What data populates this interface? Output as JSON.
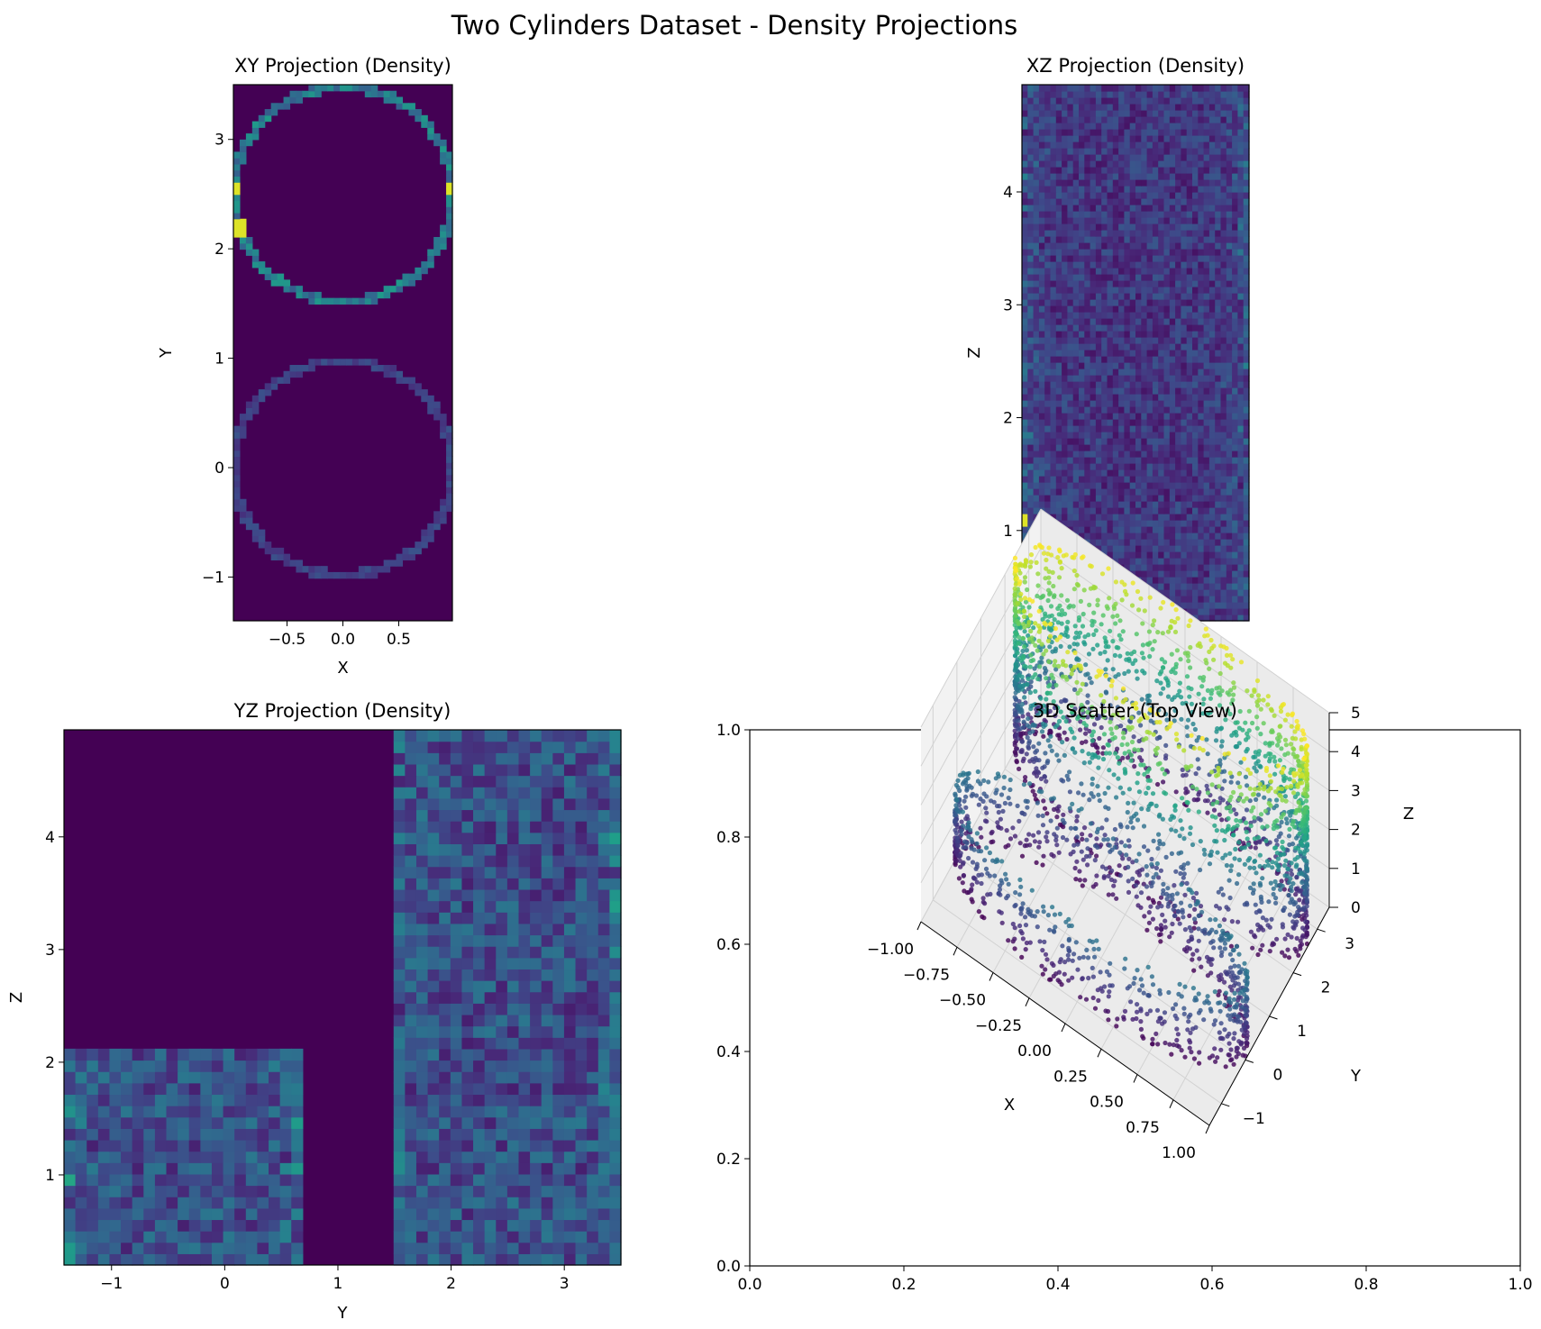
{
  "figure": {
    "suptitle": "Two Cylinders Dataset - Density Projections"
  },
  "colors": {
    "viridis": [
      "#440154",
      "#482878",
      "#3e4989",
      "#31688e",
      "#26828e",
      "#1f9e89",
      "#35b779",
      "#6ece58",
      "#b5de2b",
      "#fde725"
    ],
    "pane_floor": "#ebebeb",
    "pane_wall": "#f2f2f2"
  },
  "chart_data": [
    {
      "type": "heatmap",
      "title": "XY Projection (Density)",
      "xlabel": "X",
      "ylabel": "Y",
      "xlim": [
        -0.98,
        0.98
      ],
      "ylim": [
        -1.4,
        3.5
      ],
      "x_ticks": [
        {
          "v": -0.5,
          "label": "−0.5"
        },
        {
          "v": 0.0,
          "label": "0.0"
        },
        {
          "v": 0.5,
          "label": "0.5"
        }
      ],
      "y_ticks": [
        {
          "v": -1,
          "label": "−1"
        },
        {
          "v": 0,
          "label": "0"
        },
        {
          "v": 1,
          "label": "1"
        },
        {
          "v": 2,
          "label": "2"
        },
        {
          "v": 3,
          "label": "3"
        }
      ],
      "bins": [
        35,
        88
      ],
      "rings": [
        {
          "cx": 0.0,
          "cy": 0.0,
          "r": 0.98,
          "density": 0.2
        },
        {
          "cx": 0.0,
          "cy": 2.5,
          "r": 0.98,
          "density": 0.42
        }
      ],
      "hot_spots": [
        {
          "x": -0.97,
          "y": 2.55
        },
        {
          "x": 0.97,
          "y": 2.55
        },
        {
          "x": -0.93,
          "y": 2.2
        }
      ]
    },
    {
      "type": "heatmap",
      "title": "XZ Projection (Density)",
      "xlabel": "X",
      "ylabel": "Z",
      "xlim": [
        -0.98,
        0.98
      ],
      "ylim": [
        0.2,
        4.95
      ],
      "x_ticks": [
        {
          "v": -0.5,
          "label": "−0.5"
        },
        {
          "v": 0.0,
          "label": "0.0"
        },
        {
          "v": 0.5,
          "label": "0.5"
        }
      ],
      "y_ticks": [
        {
          "v": 1,
          "label": "1"
        },
        {
          "v": 2,
          "label": "2"
        },
        {
          "v": 3,
          "label": "3"
        },
        {
          "v": 4,
          "label": "4"
        }
      ],
      "bins": [
        40,
        85
      ],
      "hot_spots": [
        {
          "x": -0.96,
          "y": 1.1
        }
      ]
    },
    {
      "type": "heatmap",
      "title": "YZ Projection (Density)",
      "xlabel": "Y",
      "ylabel": "Z",
      "xlim": [
        -1.42,
        3.5
      ],
      "ylim": [
        0.2,
        4.95
      ],
      "x_ticks": [
        {
          "v": -1,
          "label": "−1"
        },
        {
          "v": 0,
          "label": "0"
        },
        {
          "v": 1,
          "label": "1"
        },
        {
          "v": 2,
          "label": "2"
        },
        {
          "v": 3,
          "label": "3"
        }
      ],
      "y_ticks": [
        {
          "v": 1,
          "label": "1"
        },
        {
          "v": 2,
          "label": "2"
        },
        {
          "v": 3,
          "label": "3"
        },
        {
          "v": 4,
          "label": "4"
        }
      ],
      "bins": [
        49,
        47
      ],
      "regions": [
        {
          "y_range": [
            -1.42,
            0.65
          ],
          "z_range": [
            0.2,
            2.1
          ]
        },
        {
          "y_range": [
            1.45,
            3.5
          ],
          "z_range": [
            0.2,
            4.95
          ]
        }
      ]
    },
    {
      "type": "scatter",
      "title": "3D Scatter (Top View)",
      "projection": "3d",
      "axes2d": {
        "xlim": [
          0,
          1
        ],
        "ylim": [
          0,
          1
        ],
        "x_ticks": [
          {
            "v": 0.0,
            "label": "0.0"
          },
          {
            "v": 0.2,
            "label": "0.2"
          },
          {
            "v": 0.4,
            "label": "0.4"
          },
          {
            "v": 0.6,
            "label": "0.6"
          },
          {
            "v": 0.8,
            "label": "0.8"
          },
          {
            "v": 1.0,
            "label": "1.0"
          }
        ],
        "y_ticks": [
          {
            "v": 0.0,
            "label": "0.0"
          },
          {
            "v": 0.2,
            "label": "0.2"
          },
          {
            "v": 0.4,
            "label": "0.4"
          },
          {
            "v": 0.6,
            "label": "0.6"
          },
          {
            "v": 0.8,
            "label": "0.8"
          },
          {
            "v": 1.0,
            "label": "1.0"
          }
        ]
      },
      "xlabel": "X",
      "ylabel": "Y",
      "zlabel": "Z",
      "xlim": [
        -1,
        1
      ],
      "ylim": [
        -1.5,
        3.5
      ],
      "zlim": [
        0,
        5
      ],
      "x_ticks": [
        {
          "v": -1.0,
          "label": "−1.00"
        },
        {
          "v": -0.75,
          "label": "−0.75"
        },
        {
          "v": -0.5,
          "label": "−0.50"
        },
        {
          "v": -0.25,
          "label": "−0.25"
        },
        {
          "v": 0.0,
          "label": "0.00"
        },
        {
          "v": 0.25,
          "label": "0.25"
        },
        {
          "v": 0.5,
          "label": "0.50"
        },
        {
          "v": 0.75,
          "label": "0.75"
        },
        {
          "v": 1.0,
          "label": "1.00"
        }
      ],
      "y_ticks": [
        {
          "v": -1,
          "label": "−1"
        },
        {
          "v": 0,
          "label": "0"
        },
        {
          "v": 1,
          "label": "1"
        },
        {
          "v": 2,
          "label": "2"
        },
        {
          "v": 3,
          "label": "3"
        }
      ],
      "z_ticks": [
        {
          "v": 0,
          "label": "0"
        },
        {
          "v": 1,
          "label": "1"
        },
        {
          "v": 2,
          "label": "2"
        },
        {
          "v": 3,
          "label": "3"
        },
        {
          "v": 4,
          "label": "4"
        },
        {
          "v": 5,
          "label": "5"
        }
      ],
      "cylinders": [
        {
          "cx": 0.0,
          "cy": 0.0,
          "r": 1.0,
          "z_range": [
            0,
            2
          ],
          "points": 900
        },
        {
          "cx": 0.0,
          "cy": 2.5,
          "r": 1.0,
          "z_range": [
            0,
            5
          ],
          "points": 2100
        }
      ],
      "color_by": "Z"
    }
  ]
}
